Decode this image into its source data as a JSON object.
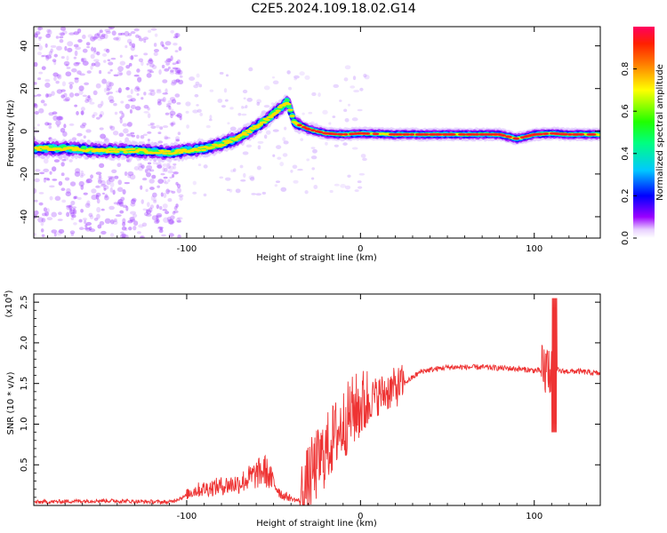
{
  "figure_title": "C2E5.2024.109.18.02.G14",
  "chart_data": [
    {
      "type": "heatmap",
      "title": "",
      "xlabel": "Height of straight line (km)",
      "ylabel": "Frequency (Hz)",
      "xlim": [
        -188,
        138
      ],
      "ylim": [
        -50,
        49
      ],
      "xticks": [
        -100,
        0,
        100
      ],
      "yticks": [
        -40,
        -20,
        0,
        20,
        40
      ],
      "colorbar": {
        "label": "Normalized spectral amplitude",
        "range": [
          0,
          1
        ],
        "ticks": [
          0.0,
          0.2,
          0.4,
          0.6,
          0.8
        ],
        "colormap": [
          "#ffffff",
          "#7b00ff",
          "#0000ff",
          "#00e0ff",
          "#00ff40",
          "#ffff00",
          "#ff6000",
          "#ff0040"
        ]
      },
      "ridge": {
        "description_x_km": [
          -188,
          -170,
          -150,
          -130,
          -110,
          -100,
          -90,
          -80,
          -70,
          -60,
          -50,
          -42,
          -38,
          -30,
          -20,
          -10,
          0,
          20,
          40,
          60,
          80,
          90,
          100,
          110,
          120,
          138
        ],
        "frequency_hz": [
          -8,
          -8,
          -9,
          -9,
          -10,
          -9,
          -8,
          -6,
          -3,
          2,
          8,
          14,
          4,
          1,
          -1,
          -1.5,
          -1,
          -1.5,
          -1.5,
          -1.5,
          -1.5,
          -3.5,
          -1.5,
          -1,
          -1.5,
          -1.5
        ]
      }
    },
    {
      "type": "line",
      "title": "",
      "xlabel": "Height of straight line (km)",
      "ylabel": "SNR (10 * v/v)",
      "y_multiplier": "(x10",
      "y_multiplier_exp": "4",
      "xlim": [
        -188,
        138
      ],
      "ylim": [
        0,
        26000
      ],
      "xticks": [
        -100,
        0,
        100
      ],
      "yticks": [
        0.5,
        1.0,
        1.5,
        2.0,
        2.5
      ],
      "series_color": "#ee3333",
      "trend": {
        "x": [
          -188,
          -150,
          -110,
          -95,
          -85,
          -70,
          -55,
          -45,
          -35,
          -28,
          -22,
          -15,
          -5,
          5,
          15,
          25,
          35,
          50,
          70,
          90,
          105,
          110,
          115,
          125,
          138
        ],
        "y": [
          300,
          500,
          300,
          1500,
          1800,
          2200,
          3500,
          1000,
          500,
          4000,
          6000,
          8500,
          11500,
          13000,
          14000,
          15000,
          16500,
          17000,
          17000,
          16800,
          16500,
          17000,
          16500,
          16500,
          16200
        ]
      }
    }
  ]
}
